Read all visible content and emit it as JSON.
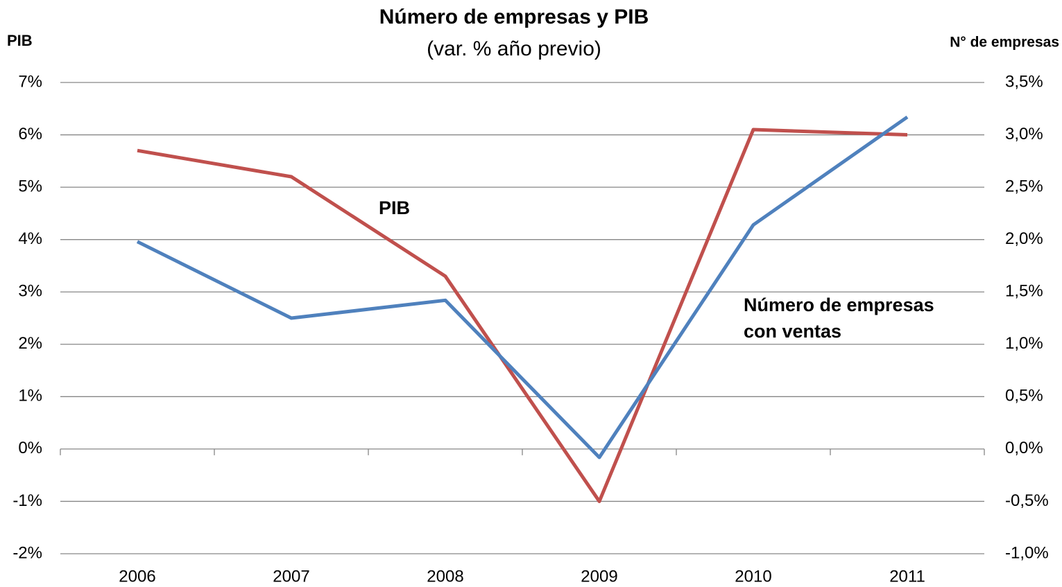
{
  "chart_data": {
    "type": "line",
    "title": "Número de empresas y PIB",
    "subtitle": "(var. % año previo)",
    "y_label": "PIB",
    "y2_label": "N° de empresas",
    "categories": [
      "2006",
      "2007",
      "2008",
      "2009",
      "2010",
      "2011"
    ],
    "series": [
      {
        "name": "PIB",
        "color": "#c0504d",
        "values": [
          5.7,
          5.2,
          3.3,
          -1.0,
          6.1,
          6.0
        ]
      },
      {
        "name": "Número de empresas con ventas",
        "color": "#4f81bd",
        "axis": "y2",
        "values": [
          1.98,
          1.25,
          1.42,
          -0.08,
          2.14,
          3.17
        ]
      }
    ],
    "annotations": [
      {
        "lines": [
          "PIB"
        ],
        "color": "#c0504d"
      },
      {
        "lines": [
          "Número de empresas",
          "con ventas"
        ],
        "color": "#4f81bd"
      }
    ],
    "ylim": [
      -2,
      7
    ],
    "yticks": [
      {
        "value": -2,
        "label": "-2%"
      },
      {
        "value": -1,
        "label": "-1%"
      },
      {
        "value": 0,
        "label": "0%"
      },
      {
        "value": 1,
        "label": "1%"
      },
      {
        "value": 2,
        "label": "2%"
      },
      {
        "value": 3,
        "label": "3%"
      },
      {
        "value": 4,
        "label": "4%"
      },
      {
        "value": 5,
        "label": "5%"
      },
      {
        "value": 6,
        "label": "6%"
      },
      {
        "value": 7,
        "label": "7%"
      }
    ],
    "y2lim": [
      -1.0,
      3.5
    ],
    "y2ticks": [
      {
        "value": -1.0,
        "label": "-1,0%"
      },
      {
        "value": -0.5,
        "label": "-0,5%"
      },
      {
        "value": 0,
        "label": "0,0%"
      },
      {
        "value": 0.5,
        "label": "0,5%"
      },
      {
        "value": 1.0,
        "label": "1,0%"
      },
      {
        "value": 1.5,
        "label": "1,5%"
      },
      {
        "value": 2.0,
        "label": "2,0%"
      },
      {
        "value": 2.5,
        "label": "2,5%"
      },
      {
        "value": 3.0,
        "label": "3,0%"
      },
      {
        "value": 3.5,
        "label": "3,5%"
      }
    ],
    "grid": true
  }
}
